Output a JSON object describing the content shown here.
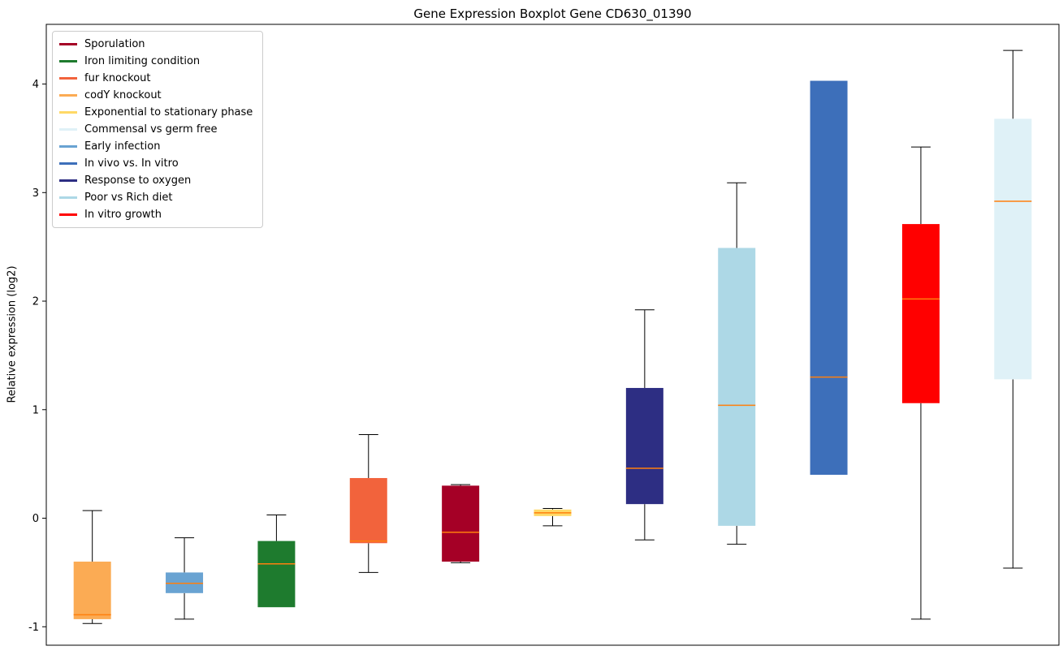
{
  "chart_data": {
    "type": "boxplot",
    "title": "Gene Expression Boxplot Gene CD630_01390",
    "xlabel": "",
    "ylabel": "Relative expression (log2)",
    "ylim": [
      -1.17,
      4.55
    ],
    "yticks": [
      -1,
      0,
      1,
      2,
      3,
      4
    ],
    "grid": false,
    "legend_position": "upper left",
    "median_color": "#ff7f0e",
    "legend": [
      {
        "label": "Sporulation",
        "color": "#a50026"
      },
      {
        "label": "Iron limiting condition",
        "color": "#1e7b2e"
      },
      {
        "label": "fur knockout",
        "color": "#f2633c"
      },
      {
        "label": "codY knockout",
        "color": "#fbab54"
      },
      {
        "label": "Exponential to stationary phase",
        "color": "#ffd966"
      },
      {
        "label": "Commensal vs germ free",
        "color": "#dff1f7"
      },
      {
        "label": "Early infection",
        "color": "#69a3d2"
      },
      {
        "label": "In vivo vs. In vitro",
        "color": "#3d6fba"
      },
      {
        "label": "Response to oxygen",
        "color": "#2d2e83"
      },
      {
        "label": "Poor vs Rich diet",
        "color": "#add8e6"
      },
      {
        "label": "In vitro growth",
        "color": "#ff0000"
      }
    ],
    "boxes": [
      {
        "label": "codY knockout",
        "color": "#fbab54",
        "whisker_low": -0.97,
        "q1": -0.93,
        "median": -0.89,
        "q3": -0.4,
        "whisker_high": 0.07
      },
      {
        "label": "Early infection",
        "color": "#69a3d2",
        "whisker_low": -0.93,
        "q1": -0.69,
        "median": -0.6,
        "q3": -0.5,
        "whisker_high": -0.18
      },
      {
        "label": "Iron limiting condition",
        "color": "#1e7b2e",
        "whisker_low": -0.82,
        "q1": -0.82,
        "median": -0.42,
        "q3": -0.21,
        "whisker_high": 0.03
      },
      {
        "label": "fur knockout",
        "color": "#f2633c",
        "whisker_low": -0.5,
        "q1": -0.23,
        "median": -0.21,
        "q3": 0.37,
        "whisker_high": 0.77
      },
      {
        "label": "Sporulation",
        "color": "#a50026",
        "whisker_low": -0.41,
        "q1": -0.4,
        "median": -0.13,
        "q3": 0.3,
        "whisker_high": 0.31
      },
      {
        "label": "Exponential to stationary phase",
        "color": "#ffd966",
        "whisker_low": -0.07,
        "q1": 0.02,
        "median": 0.05,
        "q3": 0.08,
        "whisker_high": 0.09
      },
      {
        "label": "Response to oxygen",
        "color": "#2d2e83",
        "whisker_low": -0.2,
        "q1": 0.13,
        "median": 0.46,
        "q3": 1.2,
        "whisker_high": 1.92
      },
      {
        "label": "Poor vs Rich diet",
        "color": "#add8e6",
        "whisker_low": -0.24,
        "q1": -0.07,
        "median": 1.04,
        "q3": 2.49,
        "whisker_high": 3.09
      },
      {
        "label": "In vivo vs. In vitro",
        "color": "#3d6fba",
        "whisker_low": 0.4,
        "q1": 0.4,
        "median": 1.3,
        "q3": 4.03,
        "whisker_high": 4.03
      },
      {
        "label": "In vitro growth",
        "color": "#ff0000",
        "whisker_low": -0.93,
        "q1": 1.06,
        "median": 2.02,
        "q3": 2.71,
        "whisker_high": 3.42
      },
      {
        "label": "Commensal vs germ free",
        "color": "#dff1f7",
        "whisker_low": -0.46,
        "q1": 1.28,
        "median": 2.92,
        "q3": 3.68,
        "whisker_high": 4.31
      }
    ]
  }
}
